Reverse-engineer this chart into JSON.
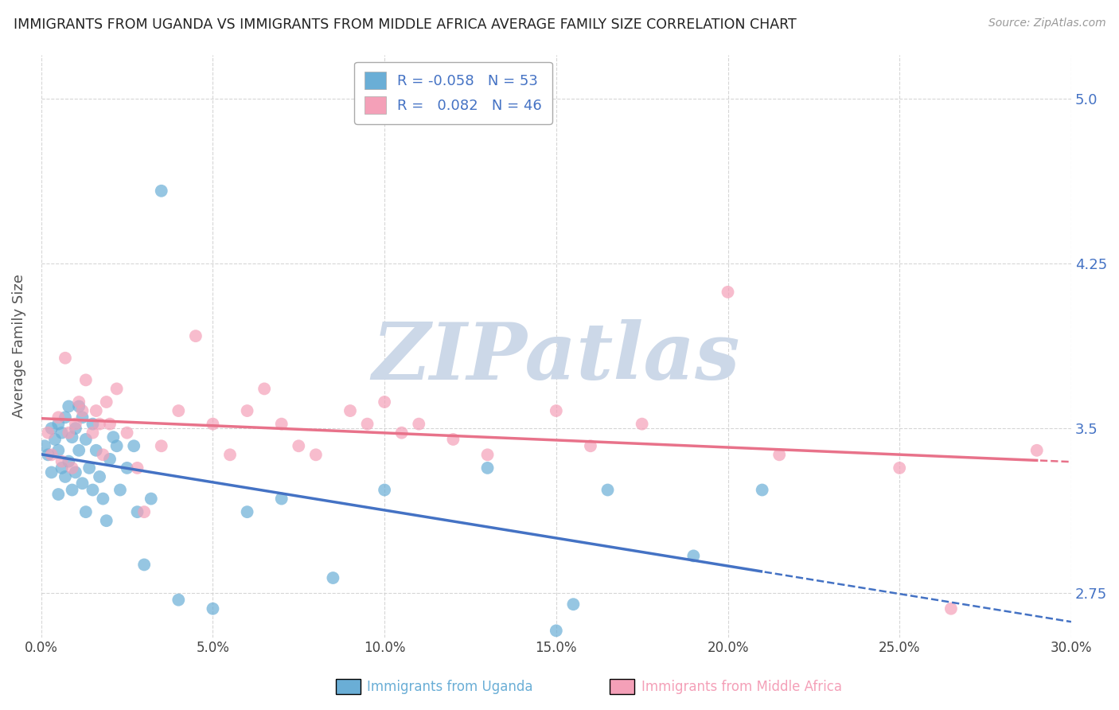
{
  "title": "IMMIGRANTS FROM UGANDA VS IMMIGRANTS FROM MIDDLE AFRICA AVERAGE FAMILY SIZE CORRELATION CHART",
  "source": "Source: ZipAtlas.com",
  "ylabel": "Average Family Size",
  "xlim": [
    0.0,
    0.3
  ],
  "ylim": [
    2.55,
    5.2
  ],
  "yticks": [
    2.75,
    3.5,
    4.25,
    5.0
  ],
  "xticks": [
    0.0,
    0.05,
    0.1,
    0.15,
    0.2,
    0.25,
    0.3
  ],
  "xticklabels": [
    "0.0%",
    "5.0%",
    "10.0%",
    "15.0%",
    "20.0%",
    "25.0%",
    "30.0%"
  ],
  "series1_color": "#6aaed6",
  "series2_color": "#f4a0b8",
  "series1_label": "Immigrants from Uganda",
  "series2_label": "Immigrants from Middle Africa",
  "R1": -0.058,
  "N1": 53,
  "R2": 0.082,
  "N2": 46,
  "background_color": "#ffffff",
  "grid_color": "#cccccc",
  "title_color": "#222222",
  "axis_label_color": "#555555",
  "tick_label_color": "#4472c4",
  "watermark_text": "ZIPatlas",
  "watermark_color": "#ccd8e8",
  "legend_r_color": "#4472c4",
  "series1_line_color": "#4472c4",
  "series2_line_color": "#e8728a",
  "series1_x": [
    0.001,
    0.002,
    0.003,
    0.003,
    0.004,
    0.005,
    0.005,
    0.005,
    0.006,
    0.006,
    0.007,
    0.007,
    0.008,
    0.008,
    0.009,
    0.009,
    0.01,
    0.01,
    0.011,
    0.011,
    0.012,
    0.012,
    0.013,
    0.013,
    0.014,
    0.015,
    0.015,
    0.016,
    0.017,
    0.018,
    0.019,
    0.02,
    0.021,
    0.022,
    0.023,
    0.025,
    0.027,
    0.028,
    0.03,
    0.032,
    0.035,
    0.04,
    0.05,
    0.06,
    0.07,
    0.085,
    0.1,
    0.13,
    0.15,
    0.165,
    0.19,
    0.21,
    0.155
  ],
  "series1_y": [
    3.42,
    3.38,
    3.5,
    3.3,
    3.45,
    3.52,
    3.4,
    3.2,
    3.48,
    3.32,
    3.55,
    3.28,
    3.6,
    3.35,
    3.46,
    3.22,
    3.5,
    3.3,
    3.6,
    3.4,
    3.55,
    3.25,
    3.45,
    3.12,
    3.32,
    3.52,
    3.22,
    3.4,
    3.28,
    3.18,
    3.08,
    3.36,
    3.46,
    3.42,
    3.22,
    3.32,
    3.42,
    3.12,
    2.88,
    3.18,
    4.58,
    2.72,
    2.68,
    3.12,
    3.18,
    2.82,
    3.22,
    3.32,
    2.58,
    3.22,
    2.92,
    3.22,
    2.7
  ],
  "series2_x": [
    0.002,
    0.003,
    0.005,
    0.006,
    0.007,
    0.008,
    0.009,
    0.01,
    0.011,
    0.012,
    0.013,
    0.015,
    0.016,
    0.017,
    0.018,
    0.019,
    0.02,
    0.022,
    0.025,
    0.028,
    0.03,
    0.035,
    0.04,
    0.045,
    0.05,
    0.055,
    0.06,
    0.065,
    0.07,
    0.075,
    0.08,
    0.09,
    0.095,
    0.1,
    0.105,
    0.11,
    0.13,
    0.15,
    0.16,
    0.175,
    0.2,
    0.215,
    0.25,
    0.265,
    0.29,
    0.12
  ],
  "series2_y": [
    3.48,
    3.38,
    3.55,
    3.35,
    3.82,
    3.48,
    3.32,
    3.52,
    3.62,
    3.58,
    3.72,
    3.48,
    3.58,
    3.52,
    3.38,
    3.62,
    3.52,
    3.68,
    3.48,
    3.32,
    3.12,
    3.42,
    3.58,
    3.92,
    3.52,
    3.38,
    3.58,
    3.68,
    3.52,
    3.42,
    3.38,
    3.58,
    3.52,
    3.62,
    3.48,
    3.52,
    3.38,
    3.58,
    3.42,
    3.52,
    4.12,
    3.38,
    3.32,
    2.68,
    3.4,
    3.45
  ]
}
